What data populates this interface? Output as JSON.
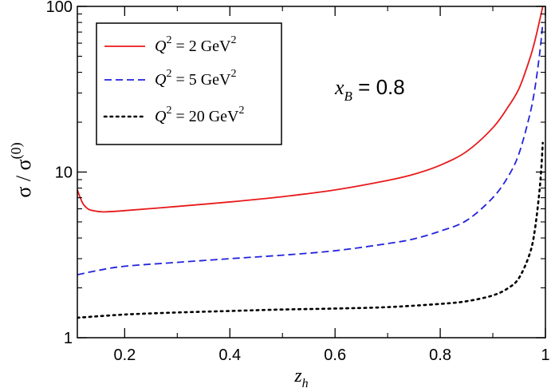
{
  "chart_data": {
    "type": "line",
    "title": "",
    "xlabel": {
      "base": "z",
      "sub": "h"
    },
    "ylabel": {
      "base": "σ / σ",
      "sup": "(0)"
    },
    "xlim": [
      0.11,
      1.0
    ],
    "ylim": [
      1,
      100
    ],
    "yscale": "log",
    "grid": false,
    "legend_position": "top-left",
    "x_ticks": [
      0.2,
      0.4,
      0.6,
      0.8,
      1.0
    ],
    "x_tick_labels": [
      "0.2",
      "0.4",
      "0.6",
      "0.8",
      "1"
    ],
    "y_ticks": [
      1,
      10,
      100
    ],
    "y_tick_labels": [
      "1",
      "10",
      "100"
    ],
    "annotation": {
      "base": "x",
      "sub": "B",
      "rest": " = 0.8"
    },
    "series": [
      {
        "name": "Q2 = 2 GeV2",
        "legend": {
          "q": "Q",
          "qsup": "2",
          "eq": " = 2 GeV",
          "unitsup": "2"
        },
        "color": "#e8191b",
        "dash": "solid",
        "x": [
          0.11,
          0.12,
          0.13,
          0.14,
          0.16,
          0.2,
          0.3,
          0.4,
          0.5,
          0.6,
          0.7,
          0.75,
          0.8,
          0.85,
          0.9,
          0.93,
          0.95,
          0.97,
          0.98,
          0.99,
          0.995
        ],
        "values": [
          7.8,
          6.5,
          6.0,
          5.85,
          5.75,
          5.85,
          6.2,
          6.6,
          7.1,
          7.8,
          8.9,
          9.7,
          11.0,
          13.3,
          18.5,
          25.0,
          32.0,
          48.0,
          62.0,
          85.0,
          100.0
        ]
      },
      {
        "name": "Q2 = 5 GeV2",
        "legend": {
          "q": "Q",
          "qsup": "2",
          "eq": " = 5 GeV",
          "unitsup": "2"
        },
        "color": "#2222dd",
        "dash": "dashed",
        "x": [
          0.11,
          0.15,
          0.2,
          0.3,
          0.4,
          0.5,
          0.6,
          0.7,
          0.75,
          0.8,
          0.85,
          0.9,
          0.93,
          0.95,
          0.97,
          0.98,
          0.99,
          0.995
        ],
        "values": [
          2.4,
          2.55,
          2.7,
          2.85,
          3.0,
          3.15,
          3.35,
          3.7,
          3.95,
          4.4,
          5.1,
          7.0,
          9.5,
          13.0,
          22.0,
          32.0,
          55.0,
          80.0
        ]
      },
      {
        "name": "Q2 = 20 GeV2",
        "legend": {
          "q": "Q",
          "qsup": "2",
          "eq": " = 20 GeV",
          "unitsup": "2"
        },
        "color": "#000000",
        "dash": "dotted",
        "x": [
          0.11,
          0.2,
          0.3,
          0.4,
          0.5,
          0.6,
          0.7,
          0.8,
          0.85,
          0.9,
          0.93,
          0.95,
          0.97,
          0.98,
          0.99,
          0.995
        ],
        "values": [
          1.32,
          1.38,
          1.42,
          1.45,
          1.48,
          1.5,
          1.53,
          1.6,
          1.66,
          1.8,
          2.0,
          2.3,
          3.2,
          4.5,
          8.5,
          15.0
        ]
      }
    ]
  }
}
